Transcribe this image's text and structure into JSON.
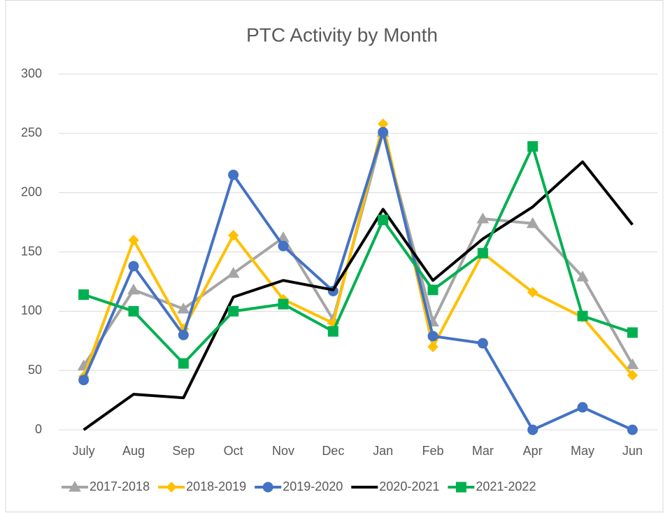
{
  "chart_data": {
    "type": "line",
    "title": "PTC Activity by Month",
    "categories": [
      "July",
      "Aug",
      "Sep",
      "Oct",
      "Nov",
      "Dec",
      "Jan",
      "Feb",
      "Mar",
      "Apr",
      "May",
      "Jun"
    ],
    "series": [
      {
        "name": "2017-2018",
        "color": "#a5a5a5",
        "marker": "triangle",
        "values": [
          54,
          118,
          102,
          132,
          162,
          93,
          251,
          91,
          178,
          174,
          129,
          55
        ]
      },
      {
        "name": "2018-2019",
        "color": "#ffc000",
        "marker": "diamond",
        "values": [
          45,
          160,
          85,
          164,
          110,
          90,
          258,
          70,
          149,
          116,
          95,
          46
        ]
      },
      {
        "name": "2019-2020",
        "color": "#4472c4",
        "marker": "circle",
        "values": [
          42,
          138,
          80,
          215,
          155,
          117,
          251,
          79,
          73,
          0,
          19,
          0
        ]
      },
      {
        "name": "2020-2021",
        "color": "#000000",
        "marker": "none",
        "values": [
          0,
          30,
          27,
          112,
          126,
          118,
          186,
          126,
          161,
          188,
          226,
          173
        ]
      },
      {
        "name": "2021-2022",
        "color": "#00b050",
        "marker": "square",
        "values": [
          114,
          100,
          56,
          100,
          106,
          83,
          177,
          118,
          149,
          239,
          96,
          82
        ]
      }
    ],
    "ylim": [
      0,
      300
    ],
    "yticks": [
      0,
      50,
      100,
      150,
      200,
      250,
      300
    ],
    "grid": true,
    "legend": "bottom"
  }
}
